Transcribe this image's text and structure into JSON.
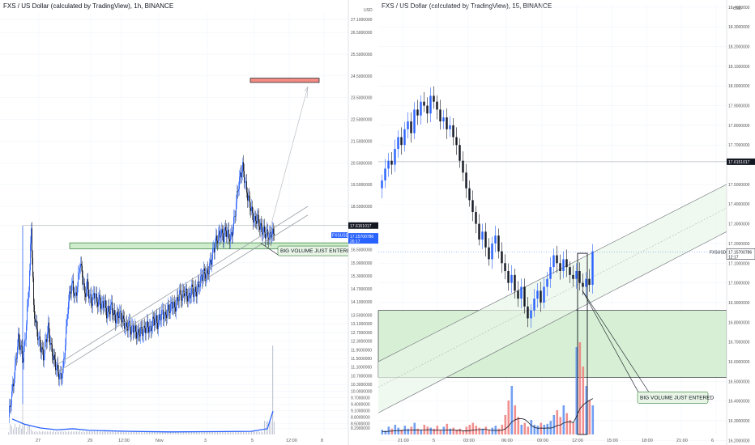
{
  "chart_data": [
    {
      "type": "candlestick",
      "title": "FXS / US Dollar (calculated by TradingView), 1h, BINANCE",
      "unit_label": "USD",
      "ylim": [
        8.0,
        27.4
      ],
      "y_ticks": [
        "27.1000000",
        "26.5000000",
        "25.5000000",
        "24.5000000",
        "23.5000000",
        "22.5000000",
        "21.5000000",
        "20.5000000",
        "19.5000000",
        "18.5000000",
        "17.6151017",
        "16.5000000",
        "15.9000000",
        "15.3000000",
        "14.7000000",
        "14.1000000",
        "13.5000000",
        "13.1000000",
        "12.7000000",
        "12.3000000",
        "11.9000000",
        "11.5000000",
        "11.1000000",
        "10.7000000",
        "10.3000000",
        "10.0000000",
        "9.7000000",
        "9.4000000",
        "9.1000000",
        "8.8000000",
        "8.5000000",
        "8.2900000"
      ],
      "x_ticks": [
        "27",
        "29",
        "12:00",
        "Nov",
        "3",
        "5",
        "12:00",
        "8"
      ],
      "price_label": "17.6151017",
      "last_price": "17.15700786",
      "last_price_symbol": "FXSUSD",
      "countdown": "26:17",
      "annotation": "BIG VOLUME JUST ENTERED",
      "close_path": [
        [
          0,
          8.8
        ],
        [
          3,
          9.6
        ],
        [
          6,
          10.4
        ],
        [
          9,
          11.4
        ],
        [
          12,
          12.4
        ],
        [
          15,
          12.0
        ],
        [
          18,
          11.5
        ],
        [
          21,
          12.6
        ],
        [
          24,
          14.2
        ],
        [
          26,
          15.5
        ],
        [
          28,
          17.6
        ],
        [
          31,
          13.8
        ],
        [
          34,
          13.0
        ],
        [
          37,
          12.4
        ],
        [
          40,
          12.0
        ],
        [
          43,
          11.6
        ],
        [
          46,
          12.3
        ],
        [
          49,
          12.9
        ],
        [
          52,
          12.1
        ],
        [
          55,
          11.6
        ],
        [
          58,
          11.2
        ],
        [
          61,
          10.9
        ],
        [
          64,
          10.6
        ],
        [
          67,
          10.9
        ],
        [
          70,
          12.2
        ],
        [
          73,
          13.8
        ],
        [
          76,
          14.6
        ],
        [
          79,
          14.9
        ],
        [
          82,
          14.3
        ],
        [
          85,
          14.8
        ],
        [
          88,
          15.9
        ],
        [
          91,
          15.4
        ],
        [
          94,
          14.4
        ],
        [
          97,
          14.9
        ],
        [
          100,
          14.3
        ],
        [
          103,
          14.1
        ],
        [
          106,
          14.5
        ],
        [
          109,
          14.1
        ],
        [
          112,
          14.2
        ],
        [
          115,
          13.9
        ],
        [
          118,
          14.1
        ],
        [
          121,
          13.6
        ],
        [
          124,
          13.7
        ],
        [
          127,
          13.9
        ],
        [
          130,
          13.5
        ],
        [
          133,
          13.3
        ],
        [
          136,
          13.6
        ],
        [
          139,
          13.4
        ],
        [
          142,
          13.2
        ],
        [
          145,
          12.9
        ],
        [
          148,
          13.1
        ],
        [
          151,
          12.8
        ],
        [
          154,
          12.9
        ],
        [
          157,
          12.7
        ],
        [
          160,
          12.6
        ],
        [
          163,
          12.8
        ],
        [
          166,
          12.7
        ],
        [
          169,
          12.9
        ],
        [
          172,
          13.0
        ],
        [
          175,
          12.8
        ],
        [
          178,
          13.2
        ],
        [
          181,
          13.3
        ],
        [
          184,
          13.1
        ],
        [
          187,
          13.4
        ],
        [
          190,
          13.6
        ],
        [
          193,
          13.4
        ],
        [
          196,
          13.7
        ],
        [
          199,
          13.8
        ],
        [
          202,
          14.0
        ],
        [
          205,
          13.8
        ],
        [
          208,
          14.1
        ],
        [
          211,
          14.5
        ],
        [
          214,
          14.3
        ],
        [
          217,
          14.6
        ],
        [
          220,
          14.4
        ],
        [
          223,
          14.3
        ],
        [
          226,
          14.7
        ],
        [
          229,
          14.5
        ],
        [
          232,
          14.6
        ],
        [
          235,
          14.9
        ],
        [
          238,
          15.2
        ],
        [
          241,
          15.4
        ],
        [
          244,
          15.3
        ],
        [
          247,
          15.6
        ],
        [
          250,
          16.0
        ],
        [
          253,
          16.5
        ],
        [
          256,
          16.9
        ],
        [
          259,
          17.1
        ],
        [
          262,
          17.3
        ],
        [
          265,
          17.1
        ],
        [
          268,
          17.4
        ],
        [
          271,
          17.2
        ],
        [
          274,
          17.0
        ],
        [
          277,
          17.5
        ],
        [
          280,
          18.3
        ],
        [
          283,
          19.3
        ],
        [
          286,
          19.9
        ],
        [
          289,
          20.3
        ],
        [
          292,
          19.6
        ],
        [
          295,
          19.0
        ],
        [
          298,
          18.6
        ],
        [
          301,
          18.1
        ],
        [
          304,
          17.8
        ],
        [
          307,
          18.0
        ],
        [
          310,
          17.6
        ],
        [
          313,
          17.4
        ],
        [
          316,
          17.3
        ],
        [
          319,
          17.2
        ],
        [
          322,
          17.1
        ],
        [
          325,
          17.3
        ],
        [
          328,
          17.16
        ]
      ],
      "volume": [
        [
          5,
          0.6
        ],
        [
          20,
          0.4
        ],
        [
          40,
          0.25
        ],
        [
          60,
          0.18
        ],
        [
          80,
          0.22
        ],
        [
          100,
          0.16
        ],
        [
          150,
          0.12
        ],
        [
          200,
          0.1
        ],
        [
          250,
          0.11
        ],
        [
          300,
          0.12
        ],
        [
          320,
          0.22
        ],
        [
          327,
          0.9
        ]
      ],
      "zones": [
        {
          "label": "resistance",
          "y_top": 24.4,
          "y_bottom": 24.2,
          "x_start": 309,
          "x_end": 394
        },
        {
          "label": "support",
          "y_top": 16.82,
          "y_bottom": 16.55,
          "x_start": 86,
          "x_end": 430
        }
      ]
    },
    {
      "type": "candlestick",
      "title": "FXS / US Dollar (calculated by TradingView), 15, BINANCE",
      "unit_label": "USD",
      "ylim": [
        16.23,
        18.42
      ],
      "y_ticks": [
        "18.4000000",
        "18.3000000",
        "18.2000000",
        "18.1000000",
        "18.0000000",
        "17.9000000",
        "17.8000000",
        "17.7000000",
        "17.6151017",
        "17.5000000",
        "17.4000000",
        "17.3000000",
        "17.2000000",
        "17.1000000",
        "17.0000000",
        "16.9000000",
        "16.8000000",
        "16.7000000",
        "16.6000000",
        "16.5000000",
        "16.4000000",
        "16.3000000",
        "16.2000000"
      ],
      "x_ticks": [
        "21:00",
        "5",
        "03:00",
        "06:00",
        "09:00",
        "12:00",
        "15:00",
        "18:00",
        "21:00",
        "6"
      ],
      "price_label": "17.6151017",
      "last_price": "17.15700786",
      "last_price_symbol": "FXSUSD",
      "countdown": "12:17",
      "annotation": "BIG VOLUME JUST ENTERED",
      "candles_close": [
        17.52,
        17.58,
        17.62,
        17.6,
        17.68,
        17.74,
        17.7,
        17.78,
        17.82,
        17.76,
        17.88,
        17.85,
        17.92,
        17.9,
        17.86,
        17.95,
        17.92,
        17.88,
        17.82,
        17.84,
        17.78,
        17.8,
        17.74,
        17.7,
        17.62,
        17.56,
        17.48,
        17.42,
        17.36,
        17.3,
        17.22,
        17.26,
        17.18,
        17.12,
        17.2,
        17.24,
        17.16,
        17.1,
        17.06,
        17.0,
        17.04,
        16.96,
        16.92,
        16.98,
        16.88,
        16.82,
        16.86,
        16.92,
        16.96,
        16.9,
        16.98,
        17.02,
        17.08,
        17.14,
        17.1,
        17.06,
        17.12,
        17.08,
        17.04,
        17.02,
        17.06,
        17.0,
        16.98,
        17.02,
        16.99,
        17.16
      ],
      "volume": [
        0.05,
        0.04,
        0.08,
        0.06,
        0.1,
        0.07,
        0.05,
        0.09,
        0.06,
        0.08,
        0.12,
        0.06,
        0.05,
        0.1,
        0.08,
        0.07,
        0.06,
        0.09,
        0.05,
        0.08,
        0.11,
        0.06,
        0.07,
        0.05,
        0.06,
        0.04,
        0.08,
        0.1,
        0.12,
        0.09,
        0.07,
        0.06,
        0.08,
        0.05,
        0.07,
        0.09,
        0.06,
        0.1,
        0.2,
        0.35,
        0.5,
        0.3,
        0.18,
        0.1,
        0.12,
        0.08,
        0.15,
        0.1,
        0.09,
        0.12,
        0.1,
        0.11,
        0.14,
        0.2,
        0.25,
        0.18,
        0.3,
        0.22,
        0.15,
        0.12,
        0.9,
        0.95,
        0.7,
        0.5,
        0.35,
        0.3
      ],
      "zones": [
        {
          "label": "demand",
          "y_top": 16.86,
          "y_bottom": 16.52
        }
      ]
    }
  ]
}
